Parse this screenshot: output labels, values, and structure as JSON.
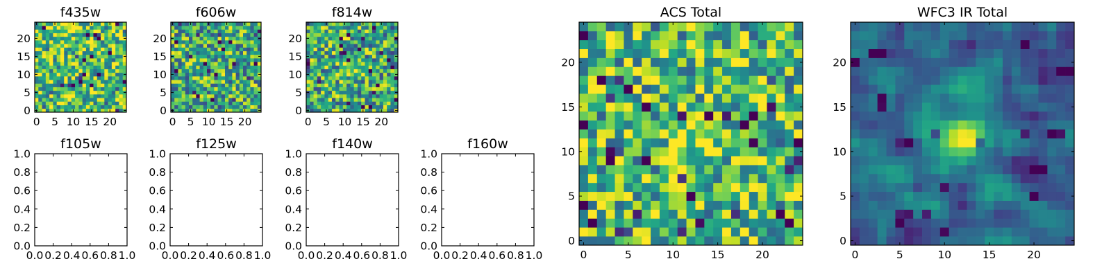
{
  "chart_data": [
    {
      "type": "heatmap",
      "title": "f435w",
      "xlabel": "",
      "ylabel": "",
      "grid_size": [
        25,
        25
      ],
      "xlim": [
        -0.5,
        24.5
      ],
      "ylim": [
        -0.5,
        24.5
      ],
      "xticks": [
        0,
        5,
        10,
        15,
        20
      ],
      "xtick_labels": [
        "0",
        "5",
        "10",
        "15",
        "20"
      ],
      "yticks": [
        0,
        5,
        10,
        15,
        20
      ],
      "ytick_labels": [
        "0",
        "5",
        "10",
        "15",
        "20"
      ],
      "colormap": "viridis",
      "pattern": "noise",
      "palette_bias": 0.72,
      "peak": [
        12,
        12
      ],
      "seed": 11
    },
    {
      "type": "heatmap",
      "title": "f606w",
      "xlabel": "",
      "ylabel": "",
      "grid_size": [
        25,
        25
      ],
      "xlim": [
        -0.5,
        24.5
      ],
      "ylim": [
        -0.5,
        24.5
      ],
      "xticks": [
        0,
        5,
        10,
        15,
        20
      ],
      "xtick_labels": [
        "0",
        "5",
        "10",
        "15",
        "20"
      ],
      "yticks": [
        0,
        5,
        10,
        15,
        20
      ],
      "ytick_labels": [
        "0",
        "5",
        "10",
        "15",
        "20"
      ],
      "colormap": "viridis",
      "pattern": "noise",
      "palette_bias": 0.62,
      "peak": [
        12,
        12
      ],
      "seed": 23
    },
    {
      "type": "heatmap",
      "title": "f814w",
      "xlabel": "",
      "ylabel": "",
      "grid_size": [
        25,
        25
      ],
      "xlim": [
        -0.5,
        24.5
      ],
      "ylim": [
        -0.5,
        24.5
      ],
      "xticks": [
        0,
        5,
        10,
        15,
        20
      ],
      "xtick_labels": [
        "0",
        "5",
        "10",
        "15",
        "20"
      ],
      "yticks": [
        0,
        5,
        10,
        15,
        20
      ],
      "ytick_labels": [
        "0",
        "5",
        "10",
        "15",
        "20"
      ],
      "colormap": "viridis",
      "pattern": "noise_with_center",
      "palette_bias": 0.62,
      "peak": [
        12,
        12
      ],
      "seed": 37
    },
    {
      "type": "scatter",
      "title": "f105w",
      "xlabel": "",
      "ylabel": "",
      "empty": true,
      "xlim": [
        0.0,
        1.0
      ],
      "ylim": [
        0.0,
        1.0
      ],
      "xticks": [
        0.0,
        0.2,
        0.4,
        0.6,
        0.8,
        1.0
      ],
      "xtick_labels": [
        "0.0",
        "0.2",
        "0.4",
        "0.6",
        "0.8",
        "1.0"
      ],
      "yticks": [
        0.0,
        0.2,
        0.4,
        0.6,
        0.8,
        1.0
      ],
      "ytick_labels": [
        "0.0",
        "0.2",
        "0.4",
        "0.6",
        "0.8",
        "1.0"
      ]
    },
    {
      "type": "scatter",
      "title": "f125w",
      "xlabel": "",
      "ylabel": "",
      "empty": true,
      "xlim": [
        0.0,
        1.0
      ],
      "ylim": [
        0.0,
        1.0
      ],
      "xticks": [
        0.0,
        0.2,
        0.4,
        0.6,
        0.8,
        1.0
      ],
      "xtick_labels": [
        "0.0",
        "0.2",
        "0.4",
        "0.6",
        "0.8",
        "1.0"
      ],
      "yticks": [
        0.0,
        0.2,
        0.4,
        0.6,
        0.8,
        1.0
      ],
      "ytick_labels": [
        "0.0",
        "0.2",
        "0.4",
        "0.6",
        "0.8",
        "1.0"
      ]
    },
    {
      "type": "scatter",
      "title": "f140w",
      "xlabel": "",
      "ylabel": "",
      "empty": true,
      "xlim": [
        0.0,
        1.0
      ],
      "ylim": [
        0.0,
        1.0
      ],
      "xticks": [
        0.0,
        0.2,
        0.4,
        0.6,
        0.8,
        1.0
      ],
      "xtick_labels": [
        "0.0",
        "0.2",
        "0.4",
        "0.6",
        "0.8",
        "1.0"
      ],
      "yticks": [
        0.0,
        0.2,
        0.4,
        0.6,
        0.8,
        1.0
      ],
      "ytick_labels": [
        "0.0",
        "0.2",
        "0.4",
        "0.6",
        "0.8",
        "1.0"
      ]
    },
    {
      "type": "scatter",
      "title": "f160w",
      "xlabel": "",
      "ylabel": "",
      "empty": true,
      "xlim": [
        0.0,
        1.0
      ],
      "ylim": [
        0.0,
        1.0
      ],
      "xticks": [
        0.0,
        0.2,
        0.4,
        0.6,
        0.8,
        1.0
      ],
      "xtick_labels": [
        "0.0",
        "0.2",
        "0.4",
        "0.6",
        "0.8",
        "1.0"
      ],
      "yticks": [
        0.0,
        0.2,
        0.4,
        0.6,
        0.8,
        1.0
      ],
      "ytick_labels": [
        "0.0",
        "0.2",
        "0.4",
        "0.6",
        "0.8",
        "1.0"
      ]
    },
    {
      "type": "heatmap",
      "title": "ACS Total",
      "xlabel": "",
      "ylabel": "",
      "grid_size": [
        25,
        25
      ],
      "xlim": [
        -0.5,
        24.5
      ],
      "ylim": [
        -0.5,
        24.5
      ],
      "xticks": [
        0,
        5,
        10,
        15,
        20
      ],
      "xtick_labels": [
        "0",
        "5",
        "10",
        "15",
        "20"
      ],
      "yticks": [
        0,
        5,
        10,
        15,
        20
      ],
      "ytick_labels": [
        "0",
        "5",
        "10",
        "15",
        "20"
      ],
      "colormap": "viridis",
      "pattern": "noise_with_center",
      "palette_bias": 0.68,
      "peak": [
        12,
        12
      ],
      "seed": 53
    },
    {
      "type": "heatmap",
      "title": "WFC3 IR Total",
      "xlabel": "",
      "ylabel": "",
      "grid_size": [
        25,
        25
      ],
      "xlim": [
        -0.5,
        24.5
      ],
      "ylim": [
        -0.5,
        24.5
      ],
      "xticks": [
        0,
        5,
        10,
        15,
        20
      ],
      "xtick_labels": [
        "0",
        "5",
        "10",
        "15",
        "20"
      ],
      "yticks": [
        0,
        5,
        10,
        15,
        20
      ],
      "ytick_labels": [
        "0",
        "5",
        "10",
        "15",
        "20"
      ],
      "colormap": "viridis",
      "pattern": "smooth_blob",
      "palette_bias": 0.5,
      "peak": [
        12.5,
        12
      ],
      "seed": 71
    }
  ]
}
